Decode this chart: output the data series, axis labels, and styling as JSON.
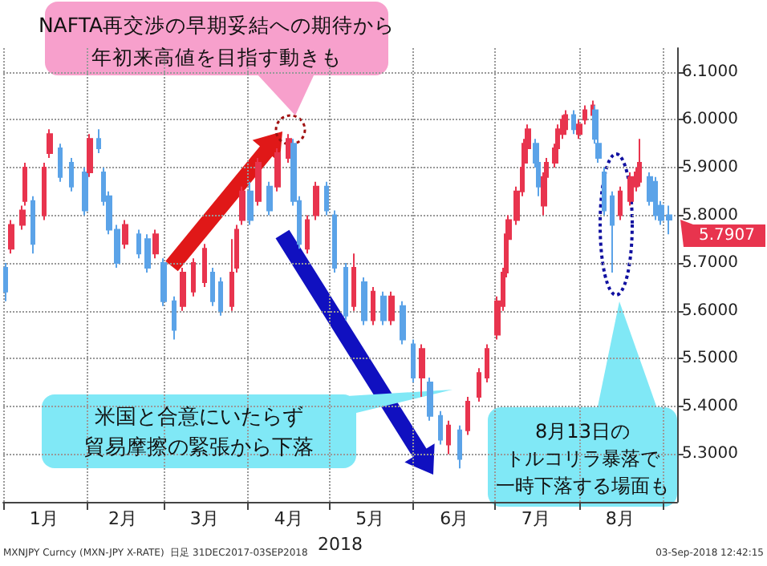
{
  "chart_data": {
    "type": "candlestick",
    "xlabel": "2018",
    "colors": [
      "#5ba3e8",
      "#e8344e",
      "#e8344e",
      "#e8344e",
      "#5ba3e8",
      "#e8344e",
      "#e8344e",
      "#5ba3e8",
      "#5ba3e8",
      "#5ba3e8",
      "#e8344e",
      "#5ba3e8",
      "#5ba3e8",
      "#5ba3e8",
      "#5ba3e8",
      "#e8344e",
      "#5ba3e8",
      "#5ba3e8",
      "#e8344e",
      "#5ba3e8",
      "#5ba3e8",
      "#e8344e",
      "#e8344e",
      "#e8344e",
      "#5ba3e8",
      "#5ba3e8",
      "#e8344e",
      "#e8344e",
      "#e8344e",
      "#5ba3e8",
      "#e8344e",
      "#5ba3e8",
      "#e8344e",
      "#e8344e",
      "#5ba3e8",
      "#5ba3e8",
      "#e8344e",
      "#e8344e",
      "#5ba3e8",
      "#5ba3e8",
      "#5ba3e8",
      "#e8344e",
      "#5ba3e8",
      "#e8344e",
      "#5ba3e8",
      "#e8344e",
      "#5ba3e8",
      "#5ba3e8",
      "#e8344e",
      "#5ba3e8",
      "#5ba3e8",
      "#e8344e",
      "#5ba3e8",
      "#e8344e",
      "#e8344e",
      "#e8344e",
      "#e8344e",
      "#e8344e",
      "#e8344e",
      "#e8344e",
      "#e8344e",
      "#e8344e",
      "#e8344e",
      "#e8344e",
      "#5ba3e8",
      "#5ba3e8",
      "#e8344e",
      "#e8344e",
      "#e8344e",
      "#e8344e",
      "#e8344e",
      "#e8344e",
      "#5ba3e8",
      "#e8344e",
      "#e8344e",
      "#e8344e",
      "#5ba3e8",
      "#5ba3e8",
      "#5ba3e8",
      "#5ba3e8",
      "#e8344e",
      "#e8344e",
      "#e8344e",
      "#e8344e",
      "#5ba3e8",
      "#5ba3e8",
      "#5ba3e8",
      "#5ba3e8"
    ],
    "x": [
      "2018-01-02",
      "2018-01-04",
      "2018-01-08",
      "2018-01-09",
      "2018-01-12",
      "2018-01-16",
      "2018-01-18",
      "2018-01-22",
      "2018-01-26",
      "2018-01-31",
      "2018-02-02",
      "2018-02-05",
      "2018-02-07",
      "2018-02-09",
      "2018-02-12",
      "2018-02-15",
      "2018-02-20",
      "2018-02-23",
      "2018-02-26",
      "2018-03-01",
      "2018-03-05",
      "2018-03-08",
      "2018-03-12",
      "2018-03-16",
      "2018-03-19",
      "2018-03-22",
      "2018-03-26",
      "2018-03-28",
      "2018-03-30",
      "2018-04-02",
      "2018-04-05",
      "2018-04-09",
      "2018-04-12",
      "2018-04-16",
      "2018-04-18",
      "2018-04-20",
      "2018-04-23",
      "2018-04-26",
      "2018-04-30",
      "2018-05-03",
      "2018-05-07",
      "2018-05-10",
      "2018-05-14",
      "2018-05-17",
      "2018-05-21",
      "2018-05-24",
      "2018-05-28",
      "2018-06-01",
      "2018-06-04",
      "2018-06-07",
      "2018-06-11",
      "2018-06-14",
      "2018-06-18",
      "2018-06-21",
      "2018-06-25",
      "2018-06-28",
      "2018-07-02",
      "2018-07-04",
      "2018-07-05",
      "2018-07-06",
      "2018-07-09",
      "2018-07-11",
      "2018-07-12",
      "2018-07-13",
      "2018-07-16",
      "2018-07-17",
      "2018-07-19",
      "2018-07-20",
      "2018-07-23",
      "2018-07-24",
      "2018-07-26",
      "2018-07-27",
      "2018-07-30",
      "2018-08-01",
      "2018-08-03",
      "2018-08-06",
      "2018-08-07",
      "2018-08-08",
      "2018-08-10",
      "2018-08-13",
      "2018-08-16",
      "2018-08-20",
      "2018-08-22",
      "2018-08-23",
      "2018-08-27",
      "2018-08-29",
      "2018-08-31",
      "2018-09-03"
    ],
    "ohlc": [
      [
        5.69,
        5.7,
        5.62,
        5.64
      ],
      [
        5.73,
        5.79,
        5.72,
        5.78
      ],
      [
        5.78,
        5.82,
        5.77,
        5.81
      ],
      [
        5.83,
        5.91,
        5.82,
        5.9
      ],
      [
        5.83,
        5.84,
        5.72,
        5.74
      ],
      [
        5.8,
        5.91,
        5.79,
        5.9
      ],
      [
        5.93,
        5.98,
        5.92,
        5.97
      ],
      [
        5.94,
        5.95,
        5.87,
        5.88
      ],
      [
        5.91,
        5.92,
        5.85,
        5.86
      ],
      [
        5.89,
        5.9,
        5.8,
        5.81
      ],
      [
        5.89,
        5.97,
        5.88,
        5.96
      ],
      [
        5.96,
        5.98,
        5.93,
        5.94
      ],
      [
        5.89,
        5.9,
        5.82,
        5.83
      ],
      [
        5.84,
        5.85,
        5.76,
        5.77
      ],
      [
        5.77,
        5.78,
        5.69,
        5.7
      ],
      [
        5.74,
        5.79,
        5.73,
        5.78
      ],
      [
        5.76,
        5.77,
        5.71,
        5.72
      ],
      [
        5.75,
        5.76,
        5.68,
        5.69
      ],
      [
        5.72,
        5.77,
        5.71,
        5.76
      ],
      [
        5.7,
        5.71,
        5.61,
        5.62
      ],
      [
        5.62,
        5.63,
        5.54,
        5.56
      ],
      [
        5.61,
        5.69,
        5.6,
        5.68
      ],
      [
        5.64,
        5.71,
        5.63,
        5.7
      ],
      [
        5.66,
        5.74,
        5.65,
        5.73
      ],
      [
        5.68,
        5.69,
        5.61,
        5.62
      ],
      [
        5.66,
        5.67,
        5.59,
        5.6
      ],
      [
        5.61,
        5.75,
        5.6,
        5.68
      ],
      [
        5.69,
        5.78,
        5.68,
        5.77
      ],
      [
        5.79,
        5.86,
        5.78,
        5.85
      ],
      [
        5.85,
        5.87,
        5.78,
        5.79
      ],
      [
        5.83,
        5.92,
        5.82,
        5.91
      ],
      [
        5.86,
        5.87,
        5.8,
        5.81
      ],
      [
        5.86,
        5.94,
        5.85,
        5.93
      ],
      [
        5.92,
        5.97,
        5.91,
        5.96
      ],
      [
        5.95,
        5.96,
        5.82,
        5.83
      ],
      [
        5.83,
        5.84,
        5.73,
        5.74
      ],
      [
        5.73,
        5.8,
        5.72,
        5.79
      ],
      [
        5.8,
        5.87,
        5.79,
        5.86
      ],
      [
        5.86,
        5.87,
        5.8,
        5.81
      ],
      [
        5.8,
        5.81,
        5.68,
        5.69
      ],
      [
        5.69,
        5.7,
        5.58,
        5.59
      ],
      [
        5.61,
        5.72,
        5.6,
        5.69
      ],
      [
        5.66,
        5.67,
        5.57,
        5.58
      ],
      [
        5.58,
        5.65,
        5.57,
        5.64
      ],
      [
        5.63,
        5.64,
        5.57,
        5.58
      ],
      [
        5.58,
        5.64,
        5.57,
        5.63
      ],
      [
        5.61,
        5.62,
        5.53,
        5.54
      ],
      [
        5.53,
        5.54,
        5.45,
        5.46
      ],
      [
        5.46,
        5.53,
        5.42,
        5.52
      ],
      [
        5.45,
        5.46,
        5.37,
        5.38
      ],
      [
        5.38,
        5.39,
        5.32,
        5.33
      ],
      [
        5.32,
        5.37,
        5.3,
        5.36
      ],
      [
        5.35,
        5.36,
        5.27,
        5.29
      ],
      [
        5.35,
        5.42,
        5.34,
        5.41
      ],
      [
        5.42,
        5.48,
        5.41,
        5.47
      ],
      [
        5.46,
        5.53,
        5.45,
        5.52
      ],
      [
        5.55,
        5.63,
        5.54,
        5.62
      ],
      [
        5.61,
        5.69,
        5.6,
        5.68
      ],
      [
        5.68,
        5.77,
        5.67,
        5.76
      ],
      [
        5.75,
        5.8,
        5.74,
        5.79
      ],
      [
        5.79,
        5.86,
        5.78,
        5.85
      ],
      [
        5.85,
        5.91,
        5.84,
        5.9
      ],
      [
        5.91,
        5.96,
        5.9,
        5.95
      ],
      [
        5.94,
        5.99,
        5.93,
        5.98
      ],
      [
        5.95,
        5.96,
        5.9,
        5.91
      ],
      [
        5.91,
        5.92,
        5.84,
        5.86
      ],
      [
        5.82,
        5.89,
        5.8,
        5.88
      ],
      [
        5.88,
        5.92,
        5.87,
        5.91
      ],
      [
        5.91,
        5.95,
        5.9,
        5.94
      ],
      [
        5.94,
        5.99,
        5.93,
        5.98
      ],
      [
        5.97,
        6.01,
        5.96,
        6.0
      ],
      [
        5.98,
        6.02,
        5.97,
        6.01
      ],
      [
        6.01,
        6.02,
        5.97,
        5.98
      ],
      [
        5.97,
        6.0,
        5.96,
        5.99
      ],
      [
        6.0,
        6.03,
        5.99,
        6.02
      ],
      [
        6.01,
        6.04,
        6.0,
        6.03
      ],
      [
        6.02,
        6.03,
        5.95,
        5.96
      ],
      [
        5.95,
        5.96,
        5.91,
        5.92
      ],
      [
        5.89,
        5.9,
        5.8,
        5.81
      ],
      [
        5.84,
        5.85,
        5.68,
        5.78
      ],
      [
        5.8,
        5.86,
        5.79,
        5.85
      ],
      [
        5.83,
        5.89,
        5.82,
        5.88
      ],
      [
        5.86,
        5.9,
        5.85,
        5.89
      ],
      [
        5.87,
        5.96,
        5.86,
        5.91
      ],
      [
        5.88,
        5.89,
        5.82,
        5.83
      ],
      [
        5.87,
        5.88,
        5.79,
        5.8
      ],
      [
        5.82,
        5.83,
        5.78,
        5.79
      ],
      [
        5.8,
        5.82,
        5.76,
        5.7907
      ]
    ],
    "xlim": [
      "2018-01-01",
      "2018-09-06"
    ],
    "xticks": [
      {
        "value": "2018-01-01",
        "label": null
      },
      {
        "value": "2018-01-16",
        "label": "1月"
      },
      {
        "value": "2018-02-01",
        "label": null
      },
      {
        "value": "2018-02-14",
        "label": "2月"
      },
      {
        "value": "2018-03-01",
        "label": null
      },
      {
        "value": "2018-03-16",
        "label": "3月"
      },
      {
        "value": "2018-04-01",
        "label": null
      },
      {
        "value": "2018-04-16",
        "label": "4月"
      },
      {
        "value": "2018-05-01",
        "label": null
      },
      {
        "value": "2018-05-16",
        "label": "5月"
      },
      {
        "value": "2018-06-01",
        "label": null
      },
      {
        "value": "2018-06-16",
        "label": "6月"
      },
      {
        "value": "2018-07-01",
        "label": null
      },
      {
        "value": "2018-07-16",
        "label": "7月"
      },
      {
        "value": "2018-08-01",
        "label": null
      },
      {
        "value": "2018-08-16",
        "label": "8月"
      },
      {
        "value": "2018-09-01",
        "label": null
      }
    ],
    "ylim": [
      5.2,
      6.15
    ],
    "yticks": [
      {
        "value": 5.3,
        "label": "5.3000"
      },
      {
        "value": 5.4,
        "label": "5.4000"
      },
      {
        "value": 5.5,
        "label": "5.5000"
      },
      {
        "value": 5.6,
        "label": "5.6000"
      },
      {
        "value": 5.7,
        "label": "5.7000"
      },
      {
        "value": 5.8,
        "label": "5.8000"
      },
      {
        "value": 5.9,
        "label": "5.9000"
      },
      {
        "value": 6.0,
        "label": "6.0000"
      },
      {
        "value": 6.1,
        "label": "6.1000"
      }
    ],
    "grid": true,
    "annotations": [
      "NAFTA再交渉の早期妥結への期待から",
      "年初来高値を目指す動きも",
      "米国と合意にいたらず",
      "貿易摩擦の緊張から下落",
      "8月13日の",
      "トルコリラ暴落で",
      "一時下落する場面も",
      {
        "text": "5.7907",
        "x": "2018-09-03",
        "y": 5.7907
      },
      "MXNJPY Curncy (MXN-JPY X-RATE)  日足 31DEC2017-03SEP2018",
      "03-Sep-2018 12:42:15"
    ]
  }
}
